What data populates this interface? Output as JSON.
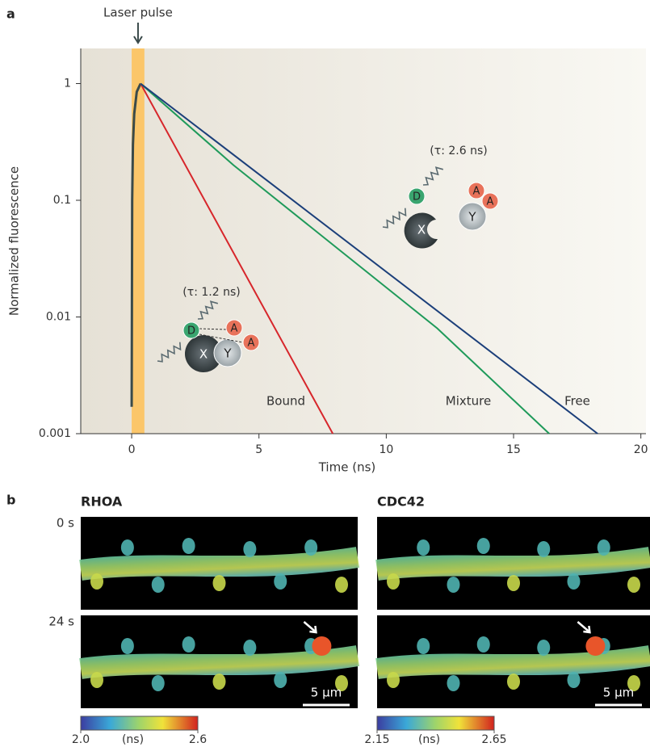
{
  "chart_data": {
    "type": "line",
    "panel_label": "a",
    "x_label": "Time (ns)",
    "y_label": "Normalized fluorescence",
    "log_y": true,
    "xlim": [
      -2,
      20.2
    ],
    "ylim": [
      0.001,
      2
    ],
    "xticks": [
      0,
      5,
      10,
      15,
      20
    ],
    "yticks": [
      0.001,
      0.01,
      0.1,
      1
    ],
    "laser_pulse": {
      "label": "Laser pulse",
      "x": [
        0,
        0.5
      ],
      "color": "#fbc66a"
    },
    "series": [
      {
        "color": "#3a4a4a",
        "x": [
          0,
          0.02,
          0.05,
          0.1,
          0.2,
          0.35
        ],
        "values": [
          0.0017,
          0.1,
          0.3,
          0.55,
          0.85,
          1
        ]
      },
      {
        "name": "Bound",
        "color": "#d7262b",
        "x": [
          0.35,
          7.9
        ],
        "values": [
          1,
          0.001
        ]
      },
      {
        "name": "Mixture",
        "color": "#1f9a5a",
        "x": [
          0.35,
          4,
          8,
          12,
          16.4
        ],
        "values": [
          1,
          0.2,
          0.04,
          0.008,
          0.001
        ]
      },
      {
        "name": "Free",
        "color": "#1b3f7a",
        "x": [
          0.35,
          18.3
        ],
        "values": [
          1,
          0.001
        ]
      }
    ],
    "annotations": {
      "bound": {
        "lifetime": "(τ: 1.2 ns)",
        "labels": [
          "D",
          "X",
          "Y",
          "A",
          "A"
        ]
      },
      "free": {
        "lifetime": "(τ: 2.6 ns)",
        "labels": [
          "D",
          "X",
          "Y",
          "A",
          "A"
        ]
      }
    }
  },
  "panel_b": {
    "panel_label": "b",
    "time_labels": [
      "0 s",
      "24 s"
    ],
    "columns": [
      {
        "title": "RHOA",
        "scale_bar": "5 μm",
        "colorbar": {
          "unit": "(ns)",
          "ticks": [
            {
              "value": 2,
              "label": "2.0"
            },
            2.6
          ]
        }
      },
      {
        "title": "CDC42",
        "scale_bar": "5 μm",
        "colorbar": {
          "unit": "(ns)",
          "ticks": [
            2.15,
            2.65
          ]
        }
      }
    ]
  }
}
